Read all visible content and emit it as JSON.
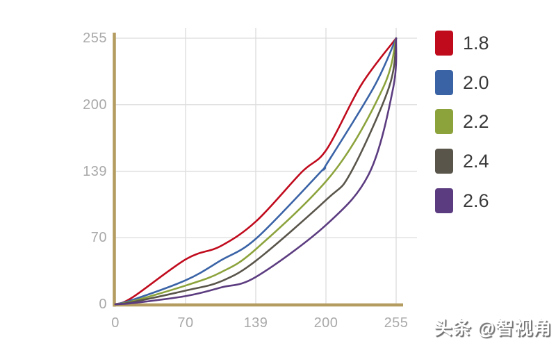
{
  "chart_data": {
    "type": "line",
    "title": "",
    "xlabel": "",
    "ylabel": "",
    "x_axis": {
      "range": [
        0,
        255
      ],
      "ticks": [
        "0",
        "70",
        "139",
        "200",
        "255"
      ],
      "tick_spacing": "even"
    },
    "y_axis": {
      "range": [
        0,
        255
      ],
      "ticks": [
        "0",
        "70",
        "139",
        "200",
        "255"
      ],
      "tick_spacing": "even"
    },
    "grid": true,
    "legend_position": "right",
    "series": [
      {
        "name": "1.8",
        "color": "#C00B1D",
        "points": [
          [
            0,
            0
          ],
          [
            0.06,
            0.025
          ],
          [
            0.2525,
            0.17
          ],
          [
            0.376,
            0.219
          ],
          [
            0.5025,
            0.313
          ],
          [
            0.663,
            0.496
          ],
          [
            0.7525,
            0.582
          ],
          [
            0.876,
            0.825
          ],
          [
            1,
            1
          ]
        ]
      },
      {
        "name": "2.0",
        "color": "#3A63A6",
        "points": [
          [
            0,
            0
          ],
          [
            0.06,
            0.016
          ],
          [
            0.2525,
            0.091
          ],
          [
            0.376,
            0.165
          ],
          [
            0.5025,
            0.248
          ],
          [
            0.73,
            0.496
          ],
          [
            0.7525,
            0.527
          ],
          [
            0.921,
            0.817
          ],
          [
            1,
            1
          ]
        ]
      },
      {
        "name": "2.2",
        "color": "#8CA33C",
        "points": [
          [
            0,
            0
          ],
          [
            0.06,
            0.011
          ],
          [
            0.2525,
            0.071
          ],
          [
            0.376,
            0.12
          ],
          [
            0.5025,
            0.209
          ],
          [
            0.777,
            0.496
          ],
          [
            0.955,
            0.817
          ],
          [
            1,
            1
          ]
        ]
      },
      {
        "name": "2.4",
        "color": "#59554B",
        "points": [
          [
            0,
            0
          ],
          [
            0.06,
            0.008
          ],
          [
            0.2525,
            0.052
          ],
          [
            0.376,
            0.086
          ],
          [
            0.5025,
            0.165
          ],
          [
            0.7525,
            0.394
          ],
          [
            0.839,
            0.496
          ],
          [
            0.975,
            0.817
          ],
          [
            1,
            1
          ]
        ]
      },
      {
        "name": "2.6",
        "color": "#5C3C80",
        "points": [
          [
            0,
            0
          ],
          [
            0.06,
            0.004
          ],
          [
            0.2525,
            0.031
          ],
          [
            0.376,
            0.063
          ],
          [
            0.5025,
            0.104
          ],
          [
            0.7525,
            0.3
          ],
          [
            0.906,
            0.496
          ],
          [
            0.99,
            0.817
          ],
          [
            1,
            1
          ]
        ]
      }
    ]
  },
  "legend": {
    "items": [
      {
        "label": "1.8",
        "color": "#C00B1D"
      },
      {
        "label": "2.0",
        "color": "#3A63A6"
      },
      {
        "label": "2.2",
        "color": "#8CA33C"
      },
      {
        "label": "2.4",
        "color": "#59554B"
      },
      {
        "label": "2.6",
        "color": "#5C3C80"
      }
    ]
  },
  "watermark": {
    "text": "头条 @智视角"
  },
  "colors": {
    "background": "#FFFFFF",
    "axis": "#B49B5F",
    "grid": "#DCDCDC",
    "tick_label": "#A9A9A9",
    "legend_label": "#3A3A3A",
    "watermark_shadow": "#6E6E6E"
  }
}
